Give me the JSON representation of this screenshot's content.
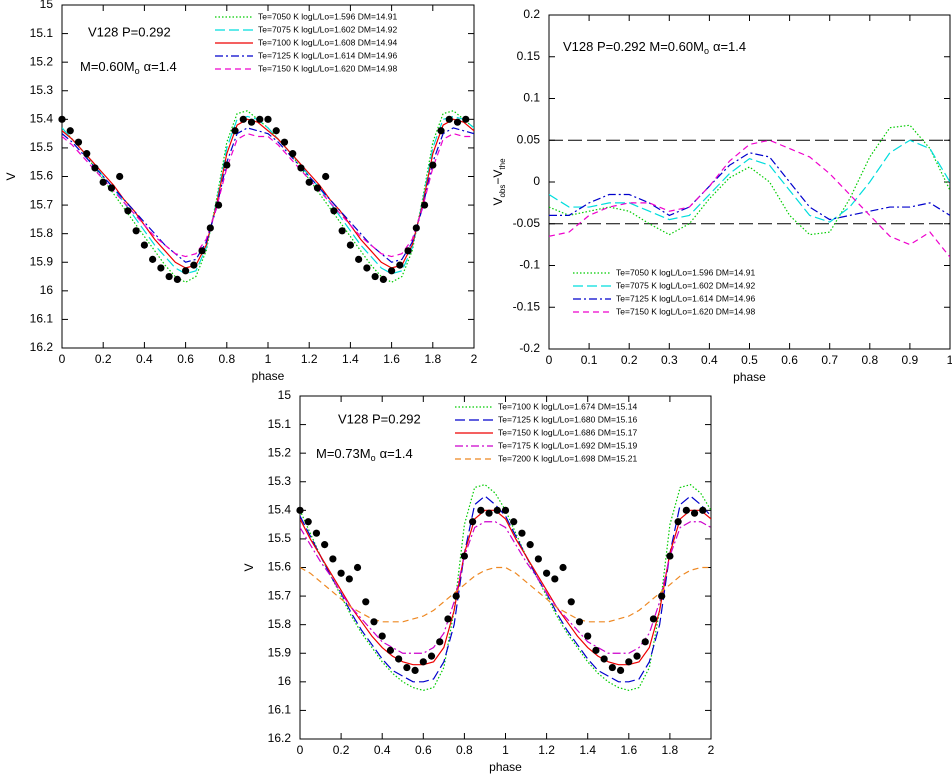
{
  "chart_data": [
    {
      "type": "line",
      "annotations": [
        "V128 P=0.292",
        "M=0.60M",
        "o",
        "α=1.4"
      ],
      "xlabel": "phase",
      "ylabel": [
        "V"
      ],
      "x": [
        0,
        0.05,
        0.1,
        0.15,
        0.2,
        0.25,
        0.3,
        0.35,
        0.4,
        0.45,
        0.5,
        0.55,
        0.6,
        0.65,
        0.7,
        0.75,
        0.8,
        0.85,
        0.9,
        0.95,
        1.0,
        1.05,
        1.1,
        1.15,
        1.2,
        1.25,
        1.3,
        1.35,
        1.4,
        1.45,
        1.5,
        1.55,
        1.6,
        1.65,
        1.7,
        1.75,
        1.8,
        1.85,
        1.9,
        1.95,
        2.0
      ],
      "series": [
        {
          "name": "Te=7050 K logL/Lo=1.596 DM=14.91",
          "color": "#00cc00",
          "style": "dotted",
          "values": [
            15.43,
            15.47,
            15.51,
            15.56,
            15.61,
            15.66,
            15.71,
            15.76,
            15.81,
            15.86,
            15.91,
            15.95,
            15.97,
            15.95,
            15.86,
            15.68,
            15.48,
            15.38,
            15.37,
            15.4,
            15.43,
            15.47,
            15.51,
            15.56,
            15.61,
            15.66,
            15.71,
            15.76,
            15.81,
            15.86,
            15.91,
            15.95,
            15.97,
            15.95,
            15.86,
            15.68,
            15.48,
            15.38,
            15.37,
            15.4,
            15.43
          ]
        },
        {
          "name": "Te=7075 K logL/Lo=1.602 DM=14.92",
          "color": "#00dddd",
          "style": "longdash",
          "values": [
            15.43,
            15.47,
            15.51,
            15.55,
            15.6,
            15.64,
            15.69,
            15.74,
            15.79,
            15.84,
            15.88,
            15.92,
            15.94,
            15.93,
            15.85,
            15.69,
            15.5,
            15.4,
            15.39,
            15.4,
            15.43,
            15.47,
            15.51,
            15.55,
            15.6,
            15.64,
            15.69,
            15.74,
            15.79,
            15.84,
            15.88,
            15.92,
            15.94,
            15.93,
            15.85,
            15.69,
            15.5,
            15.4,
            15.39,
            15.4,
            15.43
          ]
        },
        {
          "name": "Te=7100 K logL/Lo=1.608 DM=14.94",
          "color": "#ee0000",
          "style": "solid",
          "values": [
            15.44,
            15.47,
            15.51,
            15.55,
            15.59,
            15.63,
            15.68,
            15.72,
            15.77,
            15.82,
            15.86,
            15.9,
            15.92,
            15.91,
            15.84,
            15.7,
            15.52,
            15.42,
            15.4,
            15.41,
            15.44,
            15.47,
            15.51,
            15.55,
            15.59,
            15.63,
            15.68,
            15.72,
            15.77,
            15.82,
            15.86,
            15.9,
            15.92,
            15.91,
            15.84,
            15.7,
            15.52,
            15.42,
            15.4,
            15.41,
            15.44
          ]
        },
        {
          "name": "Te=7125 K logL/Lo=1.614 DM=14.96",
          "color": "#0000cc",
          "style": "dashdot",
          "values": [
            15.45,
            15.48,
            15.52,
            15.56,
            15.6,
            15.64,
            15.68,
            15.72,
            15.76,
            15.8,
            15.84,
            15.87,
            15.9,
            15.89,
            15.83,
            15.71,
            15.55,
            15.45,
            15.43,
            15.44,
            15.45,
            15.48,
            15.52,
            15.56,
            15.6,
            15.64,
            15.68,
            15.72,
            15.76,
            15.8,
            15.84,
            15.87,
            15.9,
            15.89,
            15.83,
            15.71,
            15.55,
            15.45,
            15.43,
            15.44,
            15.45
          ]
        },
        {
          "name": "Te=7150 K logL/Lo=1.620 DM=14.98",
          "color": "#ee00cc",
          "style": "dash",
          "values": [
            15.46,
            15.49,
            15.53,
            15.57,
            15.61,
            15.65,
            15.69,
            15.73,
            15.77,
            15.81,
            15.84,
            15.87,
            15.88,
            15.87,
            15.82,
            15.71,
            15.57,
            15.47,
            15.45,
            15.46,
            15.46,
            15.49,
            15.53,
            15.57,
            15.61,
            15.65,
            15.69,
            15.73,
            15.77,
            15.81,
            15.84,
            15.87,
            15.88,
            15.87,
            15.82,
            15.71,
            15.57,
            15.47,
            15.45,
            15.46,
            15.46
          ]
        }
      ],
      "observations": {
        "color": "#000000",
        "x": [
          0,
          0.04,
          0.08,
          0.12,
          0.16,
          0.2,
          0.24,
          0.28,
          0.32,
          0.36,
          0.4,
          0.44,
          0.48,
          0.52,
          0.56,
          0.6,
          0.64,
          0.68,
          0.72,
          0.76,
          0.8,
          0.84,
          0.88,
          0.92,
          0.96,
          1.0,
          1.04,
          1.08,
          1.12,
          1.16,
          1.2,
          1.24,
          1.28,
          1.32,
          1.36,
          1.4,
          1.44,
          1.48,
          1.52,
          1.56,
          1.6,
          1.64,
          1.68,
          1.72,
          1.76,
          1.8,
          1.84,
          1.88,
          1.92,
          1.96
        ],
        "y": [
          15.4,
          15.44,
          15.48,
          15.52,
          15.57,
          15.62,
          15.64,
          15.6,
          15.72,
          15.79,
          15.84,
          15.89,
          15.92,
          15.95,
          15.96,
          15.93,
          15.91,
          15.86,
          15.78,
          15.7,
          15.56,
          15.44,
          15.4,
          15.41,
          15.4,
          15.4,
          15.44,
          15.48,
          15.52,
          15.57,
          15.62,
          15.64,
          15.6,
          15.72,
          15.79,
          15.84,
          15.89,
          15.92,
          15.95,
          15.96,
          15.93,
          15.91,
          15.86,
          15.78,
          15.7,
          15.56,
          15.44,
          15.4,
          15.41,
          15.4
        ]
      },
      "xlim": [
        0,
        2
      ],
      "ylim": [
        16.2,
        15
      ],
      "xticks": [
        0,
        0.2,
        0.4,
        0.6,
        0.8,
        1,
        1.2,
        1.4,
        1.6,
        1.8,
        2
      ],
      "yticks": [
        15,
        15.1,
        15.2,
        15.3,
        15.4,
        15.5,
        15.6,
        15.7,
        15.8,
        15.9,
        16,
        16.1,
        16.2
      ],
      "legend": "upper right"
    },
    {
      "type": "line",
      "annotations": [
        "V128 P=0.292 M=0.60M",
        "o",
        "α=1.4"
      ],
      "xlabel": "phase",
      "ylabel": [
        "V",
        "obs",
        "−V",
        "the"
      ],
      "x": [
        0,
        0.05,
        0.1,
        0.15,
        0.2,
        0.25,
        0.3,
        0.35,
        0.4,
        0.45,
        0.5,
        0.55,
        0.6,
        0.65,
        0.7,
        0.75,
        0.8,
        0.85,
        0.9,
        0.95,
        1.0
      ],
      "series": [
        {
          "name": "Te=7050 K logL/Lo=1.596 DM=14.91",
          "color": "#00cc00",
          "style": "dotted",
          "values": [
            -0.03,
            -0.04,
            -0.035,
            -0.03,
            -0.035,
            -0.05,
            -0.063,
            -0.05,
            -0.02,
            0.005,
            0.018,
            0.0,
            -0.04,
            -0.063,
            -0.06,
            -0.02,
            0.03,
            0.065,
            0.068,
            0.04,
            -0.01
          ]
        },
        {
          "name": "Te=7075 K logL/Lo=1.602 DM=14.92",
          "color": "#00dddd",
          "style": "longdash",
          "values": [
            -0.015,
            -0.03,
            -0.03,
            -0.025,
            -0.025,
            -0.035,
            -0.045,
            -0.04,
            -0.015,
            0.01,
            0.028,
            0.02,
            -0.01,
            -0.04,
            -0.048,
            -0.03,
            0.0,
            0.035,
            0.05,
            0.04,
            0.0
          ]
        },
        {
          "name": "Te=7125 K logL/Lo=1.614 DM=14.96",
          "color": "#0000cc",
          "style": "dashdot",
          "values": [
            -0.04,
            -0.04,
            -0.025,
            -0.015,
            -0.015,
            -0.025,
            -0.04,
            -0.03,
            -0.005,
            0.02,
            0.035,
            0.03,
            0.0,
            -0.03,
            -0.045,
            -0.04,
            -0.035,
            -0.03,
            -0.03,
            -0.025,
            -0.04
          ]
        },
        {
          "name": "Te=7150 K logL/Lo=1.620 DM=14.98",
          "color": "#ee00cc",
          "style": "dash",
          "values": [
            -0.065,
            -0.06,
            -0.04,
            -0.03,
            -0.025,
            -0.025,
            -0.035,
            -0.03,
            -0.005,
            0.025,
            0.045,
            0.05,
            0.04,
            0.03,
            0.01,
            -0.015,
            -0.04,
            -0.065,
            -0.075,
            -0.06,
            -0.09
          ]
        }
      ],
      "hlines": [
        0.05,
        -0.05
      ],
      "xlim": [
        0,
        1
      ],
      "ylim": [
        -0.2,
        0.2
      ],
      "xticks": [
        0,
        0.1,
        0.2,
        0.3,
        0.4,
        0.5,
        0.6,
        0.7,
        0.8,
        0.9,
        1
      ],
      "yticks": [
        -0.2,
        -0.15,
        -0.1,
        -0.05,
        0,
        0.05,
        0.1,
        0.15,
        0.2
      ],
      "legend": "lower left"
    },
    {
      "type": "line",
      "annotations": [
        "V128 P=0.292",
        "M=0.73M",
        "o",
        "α=1.4"
      ],
      "xlabel": "phase",
      "ylabel": [
        "V"
      ],
      "x": [
        0,
        0.05,
        0.1,
        0.15,
        0.2,
        0.25,
        0.3,
        0.35,
        0.4,
        0.45,
        0.5,
        0.55,
        0.6,
        0.65,
        0.7,
        0.75,
        0.8,
        0.85,
        0.9,
        0.95,
        1.0,
        1.05,
        1.1,
        1.15,
        1.2,
        1.25,
        1.3,
        1.35,
        1.4,
        1.45,
        1.5,
        1.55,
        1.6,
        1.65,
        1.7,
        1.75,
        1.8,
        1.85,
        1.9,
        1.95,
        2.0
      ],
      "series": [
        {
          "name": "Te=7100 K logL/Lo=1.674 DM=15.14",
          "color": "#00cc00",
          "style": "dotted",
          "values": [
            15.4,
            15.48,
            15.56,
            15.63,
            15.7,
            15.77,
            15.83,
            15.88,
            15.93,
            15.97,
            16.0,
            16.02,
            16.03,
            16.02,
            15.95,
            15.75,
            15.45,
            15.32,
            15.31,
            15.34,
            15.4,
            15.48,
            15.56,
            15.63,
            15.7,
            15.77,
            15.83,
            15.88,
            15.93,
            15.97,
            16.0,
            16.02,
            16.03,
            16.02,
            15.95,
            15.75,
            15.45,
            15.32,
            15.31,
            15.34,
            15.4
          ]
        },
        {
          "name": "Te=7125 K logL/Lo=1.680 DM=15.16",
          "color": "#0000cc",
          "style": "longdash",
          "values": [
            15.42,
            15.49,
            15.56,
            15.63,
            15.69,
            15.76,
            15.82,
            15.87,
            15.92,
            15.96,
            15.98,
            16.0,
            16.0,
            15.99,
            15.93,
            15.8,
            15.55,
            15.38,
            15.35,
            15.38,
            15.42,
            15.49,
            15.56,
            15.63,
            15.69,
            15.76,
            15.82,
            15.87,
            15.92,
            15.96,
            15.98,
            16.0,
            16.0,
            15.99,
            15.93,
            15.8,
            15.55,
            15.38,
            15.35,
            15.38,
            15.42
          ]
        },
        {
          "name": "Te=7150 K logL/Lo=1.686 DM=15.17",
          "color": "#ee0000",
          "style": "solid",
          "values": [
            15.43,
            15.5,
            15.56,
            15.62,
            15.68,
            15.74,
            15.79,
            15.84,
            15.88,
            15.91,
            15.93,
            15.94,
            15.94,
            15.93,
            15.88,
            15.75,
            15.55,
            15.43,
            15.4,
            15.4,
            15.43,
            15.5,
            15.56,
            15.62,
            15.68,
            15.74,
            15.79,
            15.84,
            15.88,
            15.91,
            15.93,
            15.94,
            15.94,
            15.93,
            15.88,
            15.75,
            15.55,
            15.43,
            15.4,
            15.4,
            15.43
          ]
        },
        {
          "name": "Te=7175 K logL/Lo=1.692 DM=15.19",
          "color": "#cc00cc",
          "style": "dashdot",
          "values": [
            15.46,
            15.52,
            15.58,
            15.63,
            15.69,
            15.74,
            15.78,
            15.82,
            15.86,
            15.88,
            15.9,
            15.9,
            15.9,
            15.88,
            15.83,
            15.72,
            15.56,
            15.46,
            15.44,
            15.44,
            15.46,
            15.52,
            15.58,
            15.63,
            15.69,
            15.74,
            15.78,
            15.82,
            15.86,
            15.88,
            15.9,
            15.9,
            15.9,
            15.88,
            15.83,
            15.72,
            15.56,
            15.46,
            15.44,
            15.44,
            15.46
          ]
        },
        {
          "name": "Te=7200 K logL/Lo=1.698 DM=15.21",
          "color": "#ee8822",
          "style": "dash",
          "values": [
            15.6,
            15.62,
            15.65,
            15.68,
            15.71,
            15.74,
            15.76,
            15.78,
            15.79,
            15.79,
            15.79,
            15.78,
            15.77,
            15.75,
            15.72,
            15.69,
            15.66,
            15.63,
            15.61,
            15.6,
            15.6,
            15.62,
            15.65,
            15.68,
            15.71,
            15.74,
            15.76,
            15.78,
            15.79,
            15.79,
            15.79,
            15.78,
            15.77,
            15.75,
            15.72,
            15.69,
            15.66,
            15.63,
            15.61,
            15.6,
            15.6
          ]
        }
      ],
      "observations": {
        "color": "#000000",
        "x": [
          0,
          0.04,
          0.08,
          0.12,
          0.16,
          0.2,
          0.24,
          0.28,
          0.32,
          0.36,
          0.4,
          0.44,
          0.48,
          0.52,
          0.56,
          0.6,
          0.64,
          0.68,
          0.72,
          0.76,
          0.8,
          0.84,
          0.88,
          0.92,
          0.96,
          1.0,
          1.04,
          1.08,
          1.12,
          1.16,
          1.2,
          1.24,
          1.28,
          1.32,
          1.36,
          1.4,
          1.44,
          1.48,
          1.52,
          1.56,
          1.6,
          1.64,
          1.68,
          1.72,
          1.76,
          1.8,
          1.84,
          1.88,
          1.92,
          1.96
        ],
        "y": [
          15.4,
          15.44,
          15.48,
          15.52,
          15.57,
          15.62,
          15.64,
          15.6,
          15.72,
          15.79,
          15.84,
          15.89,
          15.92,
          15.95,
          15.96,
          15.93,
          15.91,
          15.86,
          15.78,
          15.7,
          15.56,
          15.44,
          15.4,
          15.41,
          15.4,
          15.4,
          15.44,
          15.48,
          15.52,
          15.57,
          15.62,
          15.64,
          15.6,
          15.72,
          15.79,
          15.84,
          15.89,
          15.92,
          15.95,
          15.96,
          15.93,
          15.91,
          15.86,
          15.78,
          15.7,
          15.56,
          15.44,
          15.4,
          15.41,
          15.4
        ]
      },
      "xlim": [
        0,
        2
      ],
      "ylim": [
        16.2,
        15
      ],
      "xticks": [
        0,
        0.2,
        0.4,
        0.6,
        0.8,
        1,
        1.2,
        1.4,
        1.6,
        1.8,
        2
      ],
      "yticks": [
        15,
        15.1,
        15.2,
        15.3,
        15.4,
        15.5,
        15.6,
        15.7,
        15.8,
        15.9,
        16,
        16.1,
        16.2
      ],
      "legend": "upper right"
    }
  ]
}
